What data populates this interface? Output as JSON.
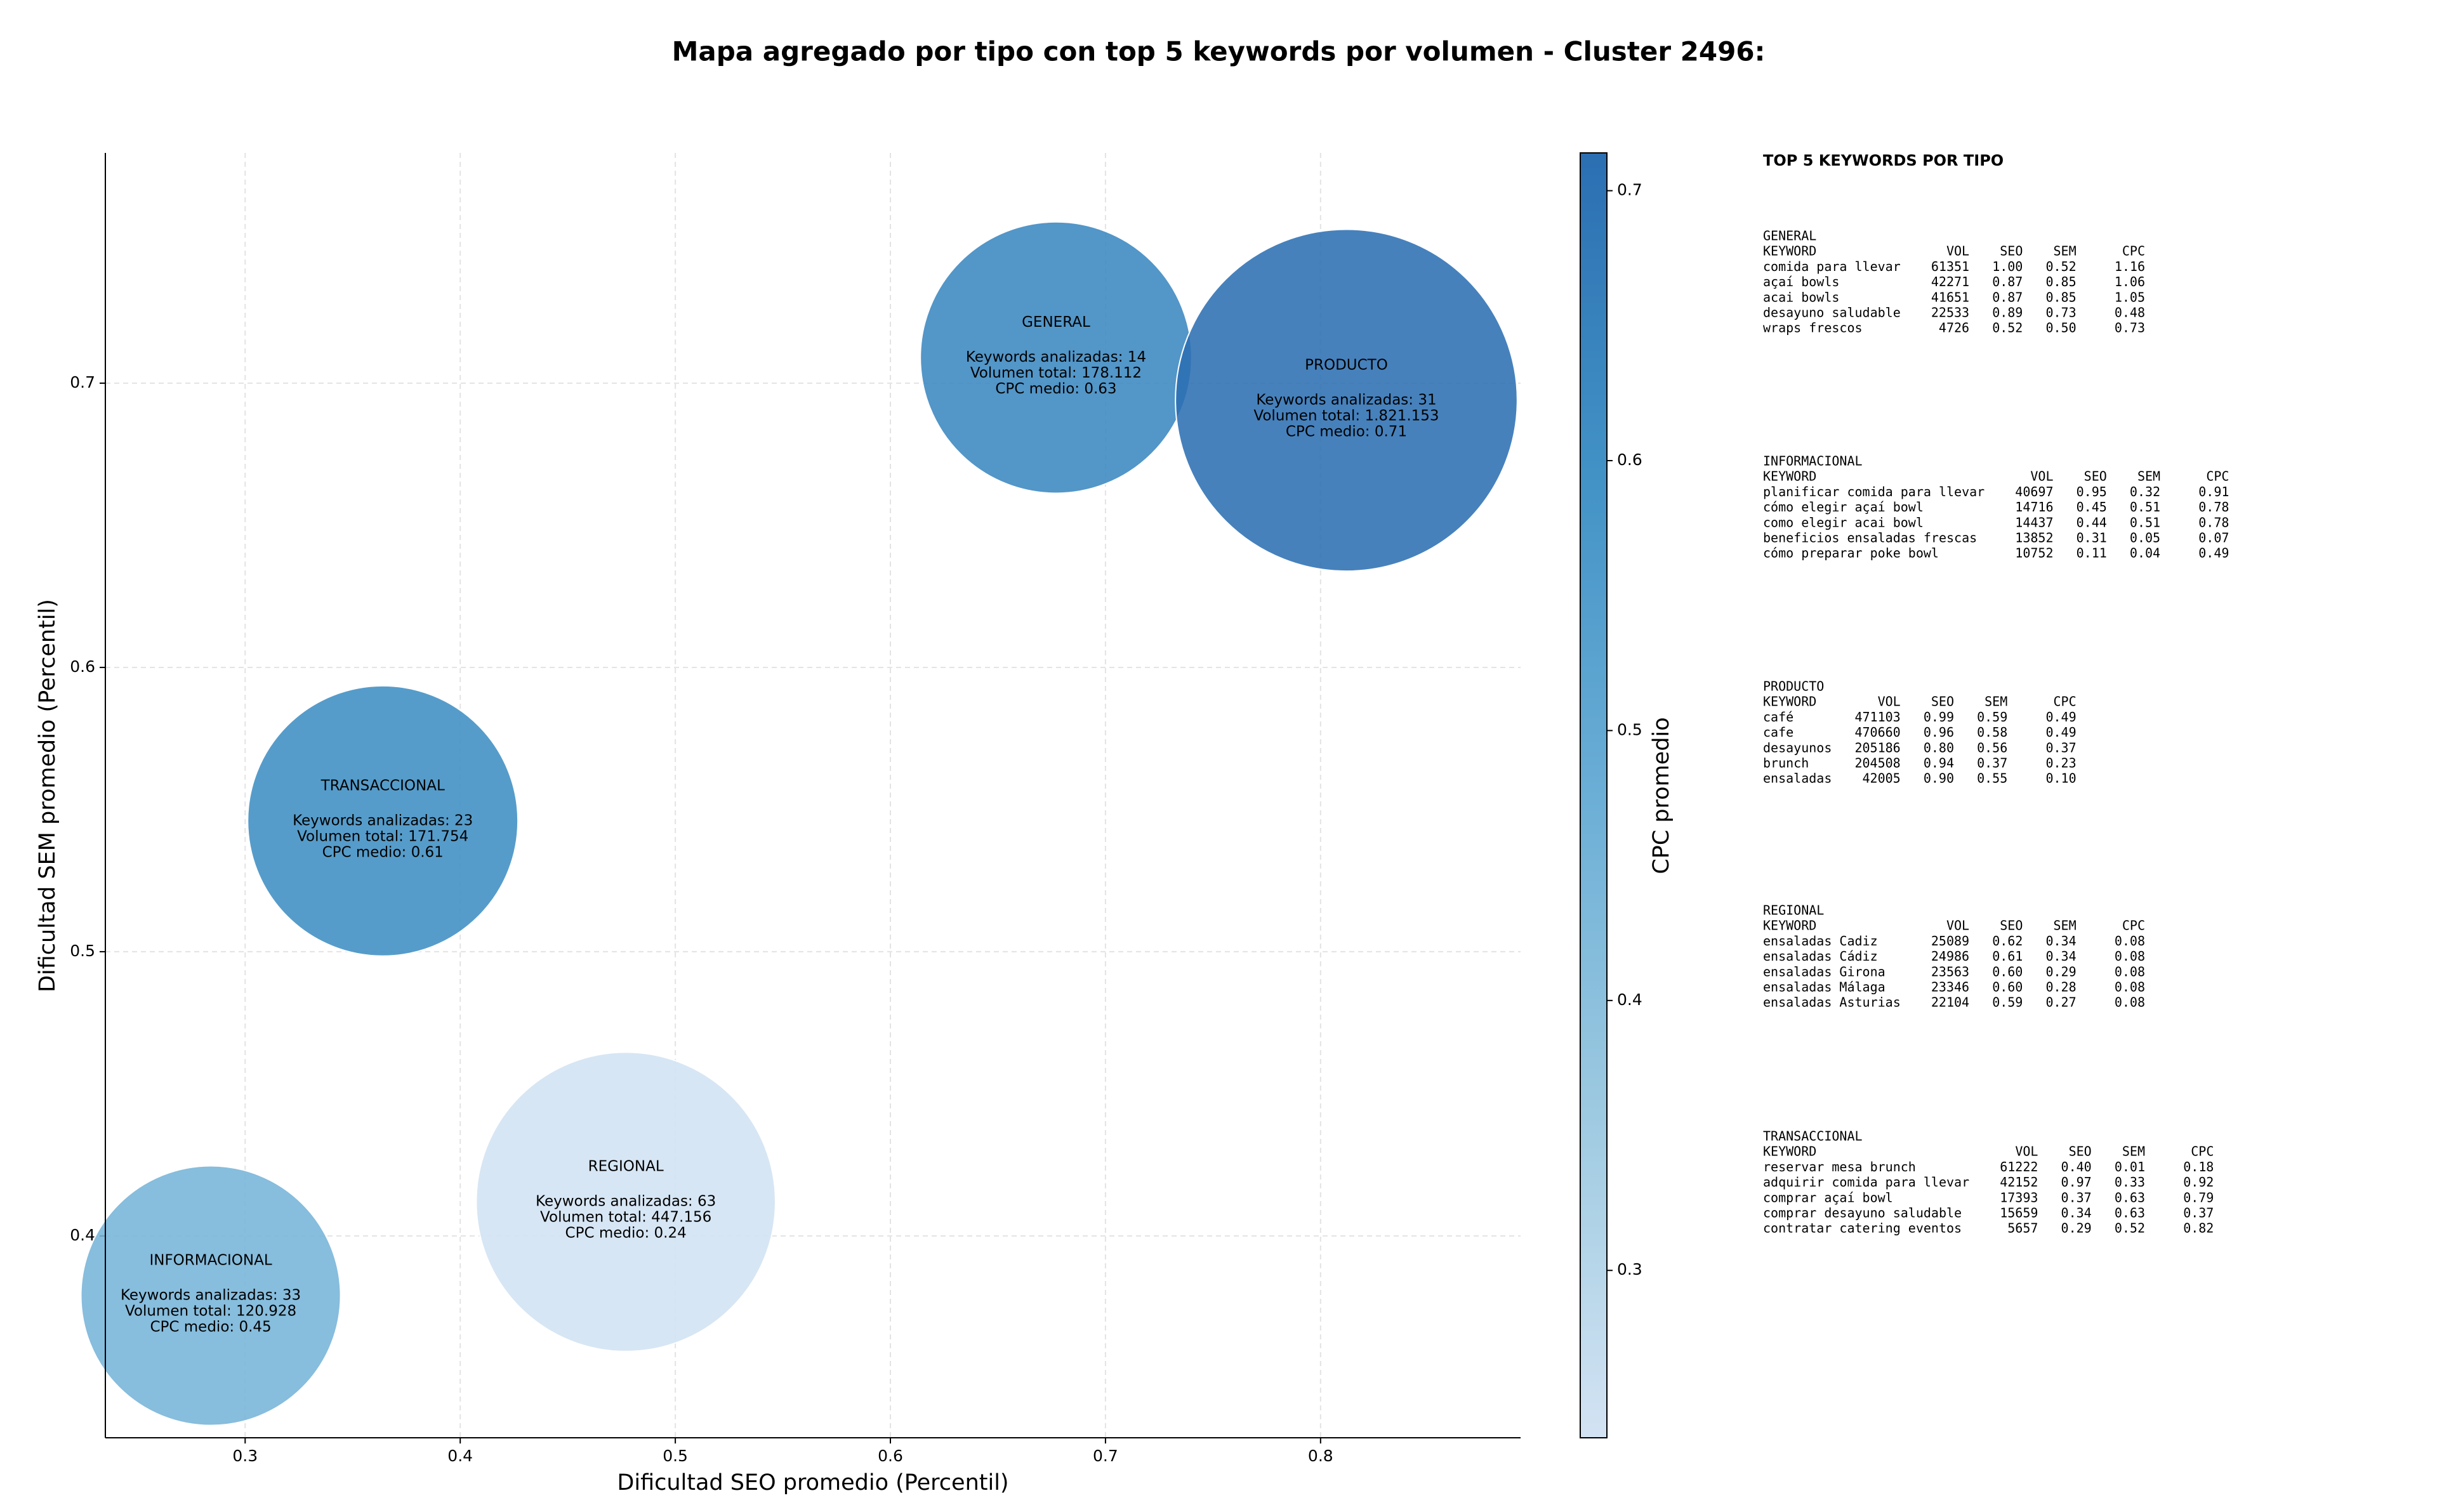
{
  "chart_data": {
    "type": "bubble",
    "title": "Mapa agregado por tipo con top 5 keywords por volumen - Cluster 2496:",
    "xlabel": "Dificultad SEO promedio (Percentil)",
    "ylabel": "Dificultad SEM promedio (Percentil)",
    "xlim": [
      0.235,
      0.893
    ],
    "ylim": [
      0.329,
      0.781
    ],
    "xticks": [
      0.3,
      0.4,
      0.5,
      0.6,
      0.7,
      0.8
    ],
    "yticks": [
      0.4,
      0.5,
      0.6,
      0.7
    ],
    "grid": true,
    "names": [
      "GENERAL",
      "PRODUCTO",
      "TRANSACCIONAL",
      "REGIONAL",
      "INFORMACIONAL"
    ],
    "x": [
      0.677,
      0.812,
      0.364,
      0.477,
      0.284
    ],
    "values": [
      0.709,
      0.694,
      0.546,
      0.412,
      0.379
    ],
    "sizes": [
      178112,
      1821153,
      171754,
      447156,
      120928
    ],
    "cpc": [
      0.63,
      0.71,
      0.61,
      0.24,
      0.45
    ],
    "details": [
      [
        "Keywords analizadas: 14",
        "Volumen total: 178.112",
        "CPC medio: 0.63"
      ],
      [
        "Keywords analizadas: 31",
        "Volumen total: 1.821.153",
        "CPC medio: 0.71"
      ],
      [
        "Keywords analizadas: 23",
        "Volumen total: 171.754",
        "CPC medio: 0.61"
      ],
      [
        "Keywords analizadas: 63",
        "Volumen total: 447.156",
        "CPC medio: 0.24"
      ],
      [
        "Keywords analizadas: 33",
        "Volumen total: 120.928",
        "CPC medio: 0.45"
      ]
    ],
    "colormap": [
      "#d3e3f3",
      "#9ecae1",
      "#6baed6",
      "#4292c6",
      "#2b6fb2"
    ],
    "colorbar": {
      "label": "CPC promedio",
      "lim": [
        0.238,
        0.714
      ],
      "ticks": [
        0.3,
        0.4,
        0.5,
        0.6,
        0.7
      ]
    }
  },
  "panel": {
    "title": "TOP 5 KEYWORDS POR TIPO",
    "sections": [
      {
        "name": "GENERAL",
        "header": [
          "KEYWORD",
          "VOL",
          "SEO",
          "SEM",
          "CPC"
        ],
        "rows": [
          [
            "comida para llevar",
            "61351",
            "1.00",
            "0.52",
            "1.16"
          ],
          [
            "açaí bowls",
            "42271",
            "0.87",
            "0.85",
            "1.06"
          ],
          [
            "acai bowls",
            "41651",
            "0.87",
            "0.85",
            "1.05"
          ],
          [
            "desayuno saludable",
            "22533",
            "0.89",
            "0.73",
            "0.48"
          ],
          [
            "wraps frescos",
            "4726",
            "0.52",
            "0.50",
            "0.73"
          ]
        ]
      },
      {
        "name": "INFORMACIONAL",
        "header": [
          "KEYWORD",
          "VOL",
          "SEO",
          "SEM",
          "CPC"
        ],
        "rows": [
          [
            "planificar comida para llevar",
            "40697",
            "0.95",
            "0.32",
            "0.91"
          ],
          [
            "cómo elegir açaí bowl",
            "14716",
            "0.45",
            "0.51",
            "0.78"
          ],
          [
            "como elegir acai bowl",
            "14437",
            "0.44",
            "0.51",
            "0.78"
          ],
          [
            "beneficios ensaladas frescas",
            "13852",
            "0.31",
            "0.05",
            "0.07"
          ],
          [
            "cómo preparar poke bowl",
            "10752",
            "0.11",
            "0.04",
            "0.49"
          ]
        ]
      },
      {
        "name": "PRODUCTO",
        "header": [
          "KEYWORD",
          "VOL",
          "SEO",
          "SEM",
          "CPC"
        ],
        "rows": [
          [
            "café",
            "471103",
            "0.99",
            "0.59",
            "0.49"
          ],
          [
            "cafe",
            "470660",
            "0.96",
            "0.58",
            "0.49"
          ],
          [
            "desayunos",
            "205186",
            "0.80",
            "0.56",
            "0.37"
          ],
          [
            "brunch",
            "204508",
            "0.94",
            "0.37",
            "0.23"
          ],
          [
            "ensaladas",
            "42005",
            "0.90",
            "0.55",
            "0.10"
          ]
        ]
      },
      {
        "name": "REGIONAL",
        "header": [
          "KEYWORD",
          "VOL",
          "SEO",
          "SEM",
          "CPC"
        ],
        "rows": [
          [
            "ensaladas Cadiz",
            "25089",
            "0.62",
            "0.34",
            "0.08"
          ],
          [
            "ensaladas Cádiz",
            "24986",
            "0.61",
            "0.34",
            "0.08"
          ],
          [
            "ensaladas Girona",
            "23563",
            "0.60",
            "0.29",
            "0.08"
          ],
          [
            "ensaladas Málaga",
            "23346",
            "0.60",
            "0.28",
            "0.08"
          ],
          [
            "ensaladas Asturias",
            "22104",
            "0.59",
            "0.27",
            "0.08"
          ]
        ]
      },
      {
        "name": "TRANSACCIONAL",
        "header": [
          "KEYWORD",
          "VOL",
          "SEO",
          "SEM",
          "CPC"
        ],
        "rows": [
          [
            "reservar mesa brunch",
            "61222",
            "0.40",
            "0.01",
            "0.18"
          ],
          [
            "adquirir comida para llevar",
            "42152",
            "0.97",
            "0.33",
            "0.92"
          ],
          [
            "comprar açaí bowl",
            "17393",
            "0.37",
            "0.63",
            "0.79"
          ],
          [
            "comprar desayuno saludable",
            "15659",
            "0.34",
            "0.63",
            "0.37"
          ],
          [
            "contratar catering eventos",
            "5657",
            "0.29",
            "0.52",
            "0.82"
          ]
        ]
      }
    ]
  }
}
